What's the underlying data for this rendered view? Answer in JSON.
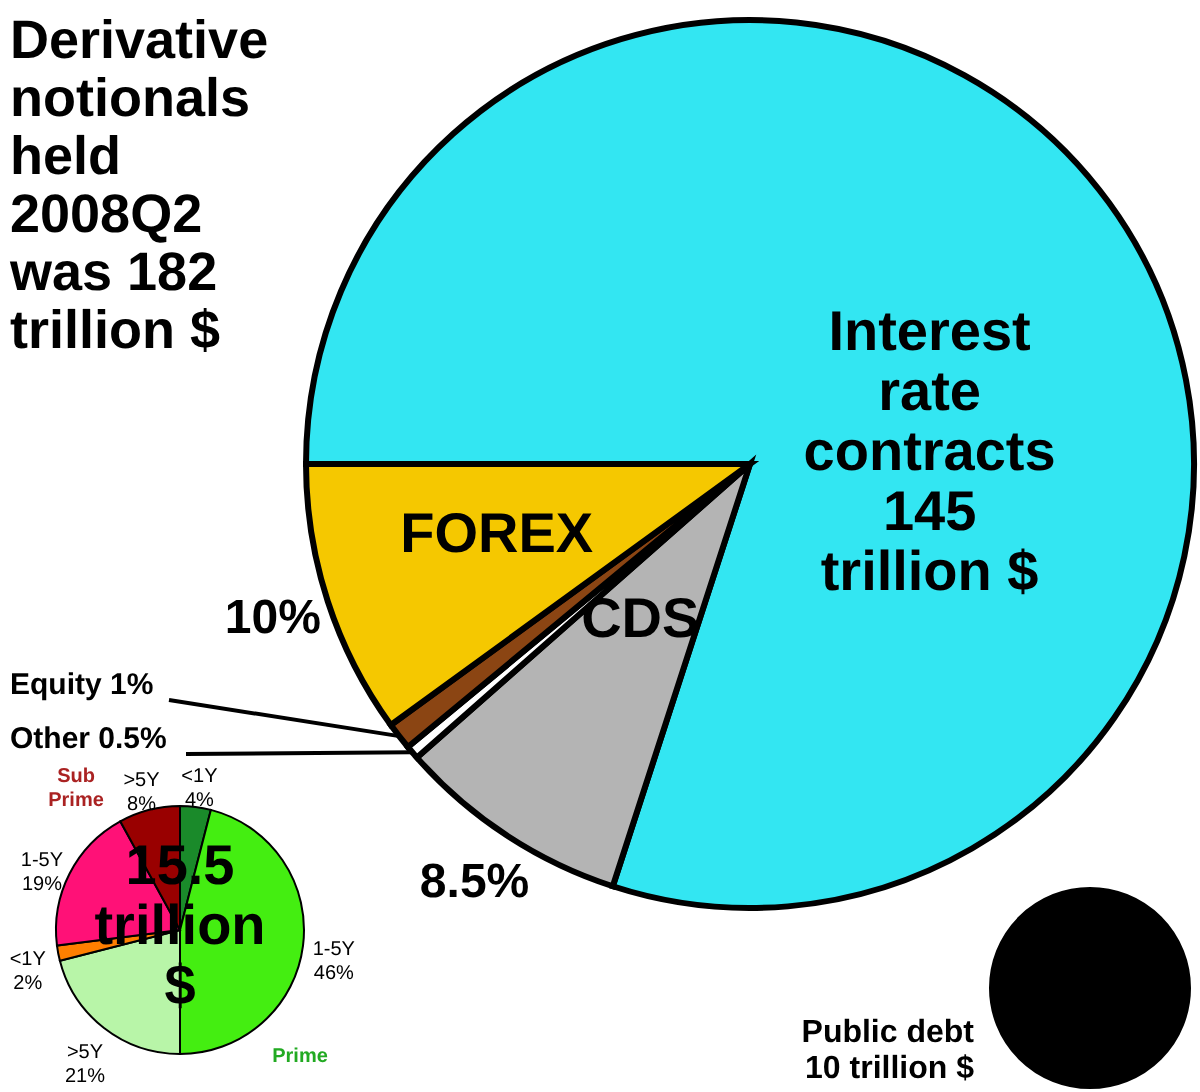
{
  "chart_data": [
    {
      "type": "pie",
      "title": "Derivative notionals held 2008Q2 was 182 trillion $",
      "categories": [
        "Interest rate contracts 145 trillion $",
        "CDS",
        "Other",
        "Equity",
        "FOREX"
      ],
      "values": [
        80,
        8.5,
        0.5,
        1,
        10
      ],
      "colors": [
        "#33e6f2",
        "#b4b4b4",
        "#ffffff",
        "#8b4513",
        "#f5c800"
      ],
      "value_labels": [
        null,
        "8.5%",
        "0.5%",
        "1%",
        "10%"
      ]
    },
    {
      "type": "pie",
      "title": "15.5 trillion $",
      "categories": [
        "<1Y",
        "1-5Y",
        ">5Y",
        "<1Y",
        "1-5Y",
        ">5Y"
      ],
      "values": [
        4,
        46,
        21,
        2,
        19,
        8
      ],
      "colors": [
        "#1a8a2a",
        "#44ee11",
        "#b8f5a8",
        "#ff7f00",
        "#ff1177",
        "#990000"
      ],
      "value_labels": [
        "4%",
        "46%",
        "21%",
        "2%",
        "19%",
        "8%"
      ],
      "annotations": [
        "Sub Prime",
        "Prime"
      ]
    },
    {
      "type": "pie",
      "categories": [
        "Public debt"
      ],
      "values": [
        10
      ],
      "colors": [
        "#000000"
      ],
      "value_labels": [
        "10 trillion $"
      ]
    }
  ]
}
